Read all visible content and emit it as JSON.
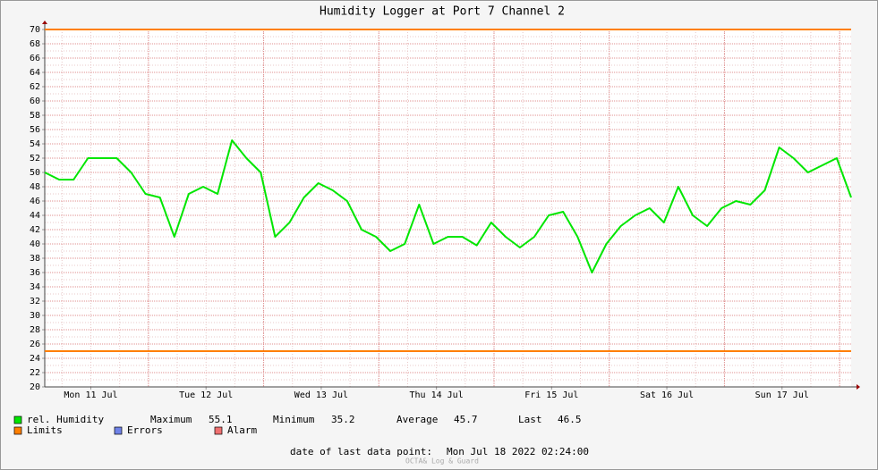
{
  "chart_data": {
    "type": "line",
    "title": "Humidity Logger at Port 7 Channel 2",
    "x": [
      "2022-07-11T02:24",
      "2022-07-11T05:24",
      "2022-07-11T08:24",
      "2022-07-11T11:24",
      "2022-07-11T14:24",
      "2022-07-11T17:24",
      "2022-07-11T20:24",
      "2022-07-11T23:24",
      "2022-07-12T02:24",
      "2022-07-12T05:24",
      "2022-07-12T08:24",
      "2022-07-12T11:24",
      "2022-07-12T14:24",
      "2022-07-12T17:24",
      "2022-07-12T20:24",
      "2022-07-12T23:24",
      "2022-07-13T02:24",
      "2022-07-13T05:24",
      "2022-07-13T08:24",
      "2022-07-13T11:24",
      "2022-07-13T14:24",
      "2022-07-13T17:24",
      "2022-07-13T20:24",
      "2022-07-13T23:24",
      "2022-07-14T02:24",
      "2022-07-14T05:24",
      "2022-07-14T08:24",
      "2022-07-14T11:24",
      "2022-07-14T14:24",
      "2022-07-14T17:24",
      "2022-07-14T20:24",
      "2022-07-14T23:24",
      "2022-07-15T02:24",
      "2022-07-15T05:24",
      "2022-07-15T08:24",
      "2022-07-15T11:24",
      "2022-07-15T14:24",
      "2022-07-15T17:24",
      "2022-07-15T20:24",
      "2022-07-15T23:24",
      "2022-07-16T02:24",
      "2022-07-16T05:24",
      "2022-07-16T08:24",
      "2022-07-16T11:24",
      "2022-07-16T14:24",
      "2022-07-16T17:24",
      "2022-07-16T20:24",
      "2022-07-16T23:24",
      "2022-07-17T02:24",
      "2022-07-17T05:24",
      "2022-07-17T08:24",
      "2022-07-17T11:24",
      "2022-07-17T14:24",
      "2022-07-17T17:24",
      "2022-07-17T20:24",
      "2022-07-17T23:24",
      "2022-07-18T02:24"
    ],
    "series": [
      {
        "name": "rel. Humidity",
        "color": "#00e600",
        "values": [
          50,
          49,
          49,
          52,
          52,
          52,
          50,
          47,
          46.5,
          41,
          47,
          48,
          47,
          54.5,
          52,
          50,
          41,
          43,
          46.5,
          48.5,
          47.5,
          46,
          42,
          41,
          39,
          40,
          45.5,
          40,
          41,
          41,
          39.8,
          43,
          41,
          39.5,
          41,
          44,
          44.5,
          41,
          36,
          40,
          42.5,
          44,
          45,
          43,
          48,
          44,
          42.5,
          45,
          46,
          45.5,
          47.5,
          53.5,
          52,
          50,
          51,
          52,
          46.5
        ]
      }
    ],
    "stats": [
      {
        "label": "Maximum",
        "value": 55.1
      },
      {
        "label": "Minimum",
        "value": 35.2
      },
      {
        "label": "Average",
        "value": 45.7
      },
      {
        "label": "Last",
        "value": 46.5
      }
    ],
    "limits": {
      "name": "Limits",
      "color": "#ff7f00",
      "values": [
        70,
        25
      ]
    },
    "legend_extra": [
      {
        "name": "Errors",
        "color": "#6f82e8"
      },
      {
        "name": "Alarm",
        "color": "#f07070"
      }
    ],
    "xlim": [
      "2022-07-11T02:24",
      "2022-07-18T02:24"
    ],
    "xticks": [
      {
        "value": "2022-07-11T12:00",
        "label": "Mon 11 Jul"
      },
      {
        "value": "2022-07-12T12:00",
        "label": "Tue 12 Jul"
      },
      {
        "value": "2022-07-13T12:00",
        "label": "Wed 13 Jul"
      },
      {
        "value": "2022-07-14T12:00",
        "label": "Thu 14 Jul"
      },
      {
        "value": "2022-07-15T12:00",
        "label": "Fri 15 Jul"
      },
      {
        "value": "2022-07-16T12:00",
        "label": "Sat 16 Jul"
      },
      {
        "value": "2022-07-17T12:00",
        "label": "Sun 17 Jul"
      }
    ],
    "ylim": [
      20,
      70
    ],
    "yticks": [
      20,
      22,
      24,
      26,
      28,
      30,
      32,
      34,
      36,
      38,
      40,
      42,
      44,
      46,
      48,
      50,
      52,
      54,
      56,
      58,
      60,
      62,
      64,
      66,
      68,
      70
    ],
    "grid": true,
    "footer_label": "date of last data point:",
    "footer_value": "Mon Jul 18 2022 02:24:00",
    "watermark": "OCTA& Log & Guard"
  }
}
